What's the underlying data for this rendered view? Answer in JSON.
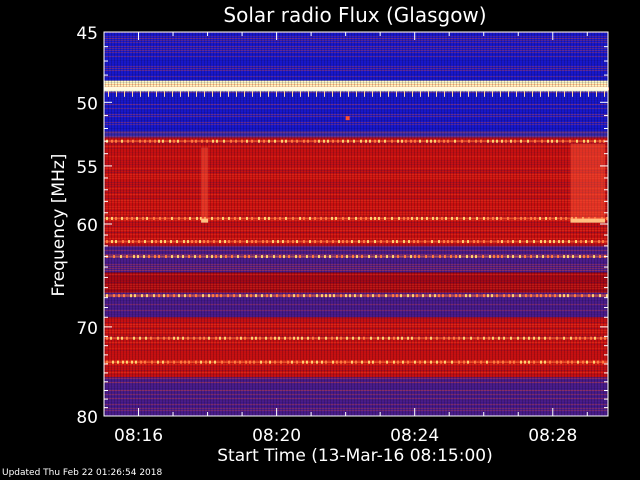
{
  "chart_data": {
    "type": "heatmap",
    "title": "Solar radio Flux (Glasgow)",
    "xlabel": "Start Time (13-Mar-16 08:15:00)",
    "ylabel": "Frequency [MHz]",
    "x_ticks": [
      "08:16",
      "08:20",
      "08:24",
      "08:28"
    ],
    "x_tick_minutes": [
      1,
      5,
      9,
      13
    ],
    "xlim_minutes": [
      0.0,
      14.6
    ],
    "y_scale": "log",
    "ylim": [
      45,
      80
    ],
    "y_major_ticks": [
      45,
      50,
      55,
      60,
      70,
      80
    ],
    "y_minor_ticks": [
      46,
      47,
      48,
      49,
      51,
      52,
      53,
      54,
      56,
      57,
      58,
      59,
      61,
      62,
      63,
      64,
      65,
      66,
      67,
      68,
      69,
      71,
      72,
      73,
      74,
      75,
      76,
      77,
      78,
      79
    ],
    "grid": false,
    "colors": {
      "background": "#000000",
      "axes": "#ffffff",
      "low": "#1a1ad2",
      "mid": "#b40000",
      "high": "#ff3a1a",
      "peak": "#fffacd"
    },
    "bands": [
      {
        "f0": 45.0,
        "f1": 45.6,
        "level": "low"
      },
      {
        "f0": 45.6,
        "f1": 48.4,
        "level": "low"
      },
      {
        "f0": 48.4,
        "f1": 49.2,
        "level": "peak"
      },
      {
        "f0": 49.2,
        "f1": 50.8,
        "level": "low"
      },
      {
        "f0": 50.8,
        "f1": 52.2,
        "level": "low"
      },
      {
        "f0": 52.2,
        "f1": 52.7,
        "level": "blue-mid"
      },
      {
        "f0": 52.7,
        "f1": 53.2,
        "level": "high"
      },
      {
        "f0": 53.2,
        "f1": 62.0,
        "level": "high"
      },
      {
        "f0": 62.0,
        "f1": 64.5,
        "level": "purple"
      },
      {
        "f0": 64.5,
        "f1": 66.5,
        "level": "mid"
      },
      {
        "f0": 66.5,
        "f1": 69.0,
        "level": "purple"
      },
      {
        "f0": 69.0,
        "f1": 75.5,
        "level": "high"
      },
      {
        "f0": 75.5,
        "f1": 80.0,
        "level": "purple"
      }
    ],
    "emission_lines_mhz": [
      49.0,
      53.0,
      59.5,
      61.6,
      63.0,
      66.8,
      71.2,
      73.8
    ],
    "features": [
      {
        "minute": 2.9,
        "f0": 53.5,
        "f1": 59.7
      },
      {
        "minute": 13.6,
        "f0": 53.2,
        "f1": 59.7
      }
    ]
  },
  "footer": "Updated Thu Feb 22 01:26:54 2018"
}
